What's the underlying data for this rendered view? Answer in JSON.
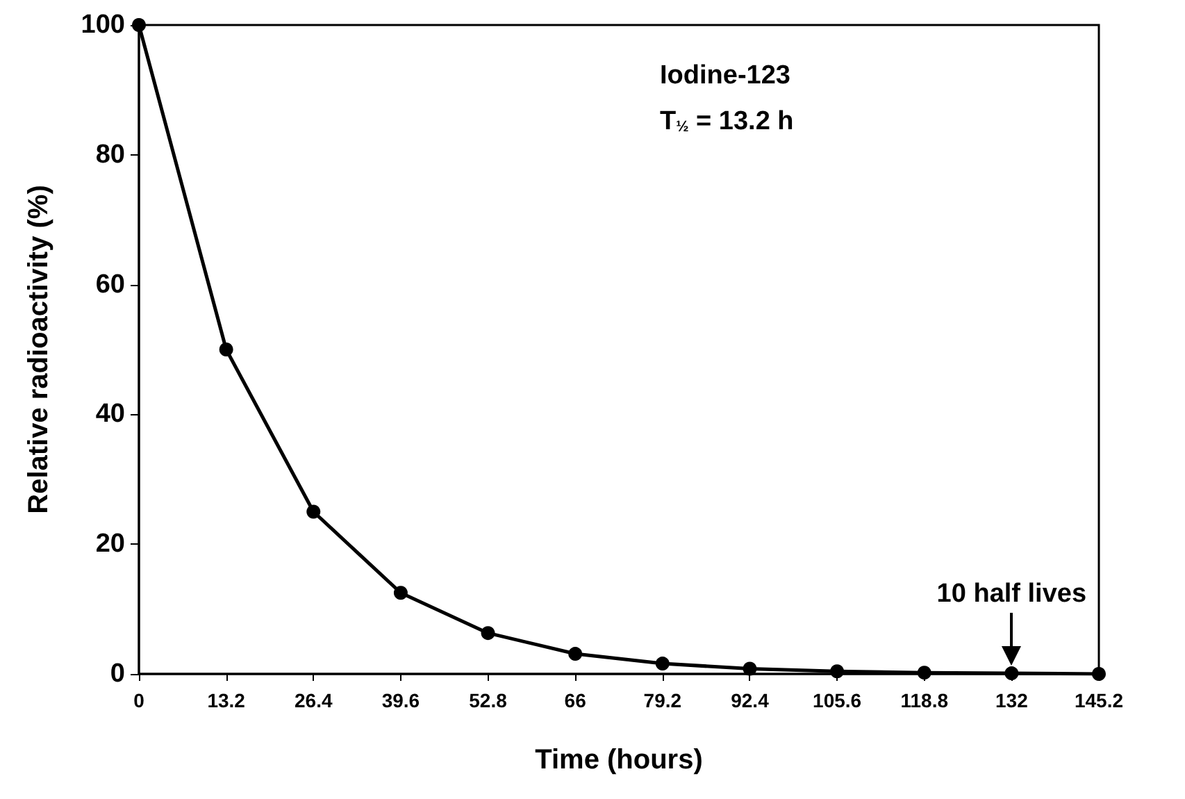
{
  "chart_data": {
    "type": "line",
    "xlabel": "Time (hours)",
    "ylabel": "Relative radioactivity (%)",
    "x": [
      0,
      13.2,
      26.4,
      39.6,
      52.8,
      66,
      79.2,
      92.4,
      105.6,
      118.8,
      132,
      145.2
    ],
    "series": [
      {
        "color": "#000000",
        "values": [
          100,
          50,
          25,
          12.5,
          6.3,
          3.1,
          1.6,
          0.8,
          0.4,
          0.2,
          0.1,
          0
        ]
      }
    ],
    "xlim": [
      0,
      145.2
    ],
    "xticks": [
      0,
      13.2,
      26.4,
      39.6,
      52.8,
      66,
      79.2,
      92.4,
      105.6,
      118.8,
      132,
      145.2
    ],
    "ylim": [
      0,
      100
    ],
    "yticks": [
      0,
      20,
      40,
      60,
      80,
      100
    ],
    "grid": false,
    "marker": "circle",
    "line_style": "solid",
    "annotations": [
      "Iodine-123",
      "T$_{½}$ = 13.2 h",
      {
        "text": "10 half lives",
        "x": 132,
        "y": 0.1
      }
    ]
  }
}
